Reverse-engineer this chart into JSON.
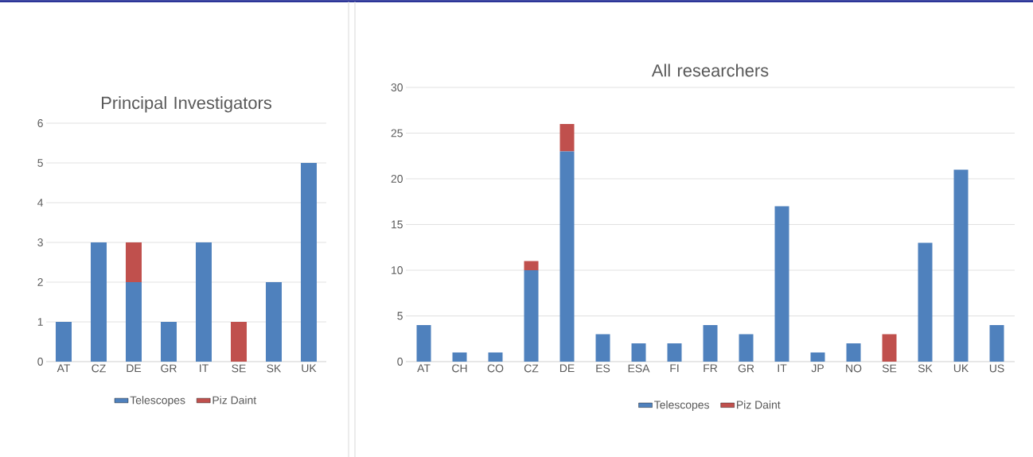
{
  "chart_data": [
    {
      "type": "bar",
      "title": "Principal Investigators",
      "categories": [
        "AT",
        "CZ",
        "DE",
        "GR",
        "IT",
        "SE",
        "SK",
        "UK"
      ],
      "stacked": true,
      "series": [
        {
          "name": "Telescopes",
          "color": "#4f81bd",
          "values": [
            1,
            3,
            2,
            1,
            3,
            0,
            2,
            5
          ]
        },
        {
          "name": "Piz Daint",
          "color": "#c0504d",
          "values": [
            0,
            0,
            1,
            0,
            0,
            1,
            0,
            0
          ]
        }
      ],
      "ylim": [
        0,
        6
      ],
      "yticks": [
        0,
        1,
        2,
        3,
        4,
        5,
        6
      ],
      "grid": "y",
      "legend": "bottom"
    },
    {
      "type": "bar",
      "title": "All researchers",
      "categories": [
        "AT",
        "CH",
        "CO",
        "CZ",
        "DE",
        "ES",
        "ESA",
        "FI",
        "FR",
        "GR",
        "IT",
        "JP",
        "NO",
        "SE",
        "SK",
        "UK",
        "US"
      ],
      "stacked": true,
      "series": [
        {
          "name": "Telescopes",
          "color": "#4f81bd",
          "values": [
            4,
            1,
            1,
            10,
            23,
            3,
            2,
            2,
            4,
            3,
            17,
            1,
            2,
            0,
            13,
            21,
            4
          ]
        },
        {
          "name": "Piz Daint",
          "color": "#c0504d",
          "values": [
            0,
            0,
            0,
            1,
            3,
            0,
            0,
            0,
            0,
            0,
            0,
            0,
            0,
            3,
            0,
            0,
            0
          ]
        }
      ],
      "ylim": [
        0,
        30
      ],
      "yticks": [
        0,
        5,
        10,
        15,
        20,
        25,
        30
      ],
      "grid": "y",
      "legend": "bottom"
    }
  ]
}
